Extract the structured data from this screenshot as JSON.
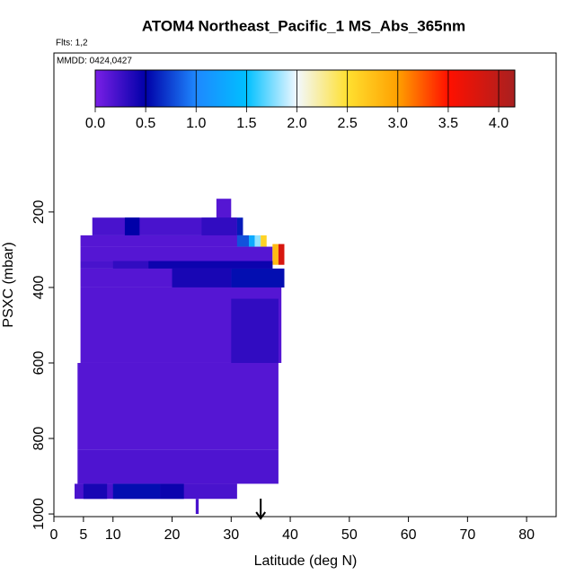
{
  "chart_data": {
    "type": "heatmap",
    "title": "ATOM4 Northeast_Pacific_1 MS_Abs_365nm",
    "subtitle": "Flts: 1,2",
    "annotation": "MMDD: 0424,0427",
    "x_label": "Latitude (deg N)",
    "y_label": "PSXC (mbar)",
    "xlim": [
      0,
      85
    ],
    "xticks": [
      0,
      5,
      10,
      20,
      30,
      40,
      50,
      60,
      70,
      80
    ],
    "ylim": [
      1007,
      -221
    ],
    "yticks": [
      200,
      400,
      600,
      800,
      1000
    ],
    "colorbar_lim": [
      0,
      4.16
    ],
    "colorbar_ticks": [
      {
        "value": 0,
        "label": "0.0"
      },
      0.5,
      {
        "value": 1,
        "label": "1.0"
      },
      1.5,
      {
        "value": 2,
        "label": "2.0"
      },
      2.5,
      {
        "value": 3,
        "label": "3.0"
      },
      3.5,
      {
        "value": 4,
        "label": "4.0"
      }
    ],
    "colorscale": [
      [
        0,
        "#7a1fe6"
      ],
      [
        0.5,
        "#0000a8"
      ],
      [
        1.0,
        "#1e88ff"
      ],
      [
        1.5,
        "#00c0ff"
      ],
      [
        2.0,
        "#f2f8ff"
      ],
      [
        2.5,
        "#ffe030"
      ],
      [
        3.0,
        "#ffa000"
      ],
      [
        3.5,
        "#ff1000"
      ],
      [
        4.16,
        "#a82020"
      ]
    ],
    "arrow_lat": 35,
    "cells": [
      {
        "lat": [
          27.5,
          30
        ],
        "p": [
          165,
          220
        ],
        "value": 0.15
      },
      {
        "lat": [
          6.5,
          31
        ],
        "p": [
          215,
          262
        ],
        "value": 0.2
      },
      {
        "lat": [
          12,
          14.5
        ],
        "p": [
          215,
          262
        ],
        "value": 0.5
      },
      {
        "lat": [
          25,
          31
        ],
        "p": [
          215,
          262
        ],
        "value": 0.3
      },
      {
        "lat": [
          31,
          32
        ],
        "p": [
          215,
          262
        ],
        "value": 0.6
      },
      {
        "lat": [
          4.5,
          33
        ],
        "p": [
          262,
          292
        ],
        "value": 0.15
      },
      {
        "lat": [
          31,
          33
        ],
        "p": [
          262,
          292
        ],
        "value": 0.8
      },
      {
        "lat": [
          33,
          34
        ],
        "p": [
          262,
          292
        ],
        "value": 1.3
      },
      {
        "lat": [
          34,
          35
        ],
        "p": [
          262,
          292
        ],
        "value": 1.8
      },
      {
        "lat": [
          35,
          36
        ],
        "p": [
          262,
          292
        ],
        "value": 2.6
      },
      {
        "lat": [
          4.5,
          37
        ],
        "p": [
          292,
          330
        ],
        "value": 0.15
      },
      {
        "lat": [
          37,
          38
        ],
        "p": [
          285,
          340
        ],
        "value": 2.8
      },
      {
        "lat": [
          38,
          39
        ],
        "p": [
          285,
          340
        ],
        "value": 3.8
      },
      {
        "lat": [
          4.5,
          37
        ],
        "p": [
          330,
          350
        ],
        "value": 0.2
      },
      {
        "lat": [
          10,
          16
        ],
        "p": [
          330,
          350
        ],
        "value": 0.3
      },
      {
        "lat": [
          16,
          37
        ],
        "p": [
          330,
          350
        ],
        "value": 0.45
      },
      {
        "lat": [
          4.5,
          39
        ],
        "p": [
          350,
          400
        ],
        "value": 0.15
      },
      {
        "lat": [
          20,
          30
        ],
        "p": [
          350,
          400
        ],
        "value": 0.4
      },
      {
        "lat": [
          30,
          39
        ],
        "p": [
          350,
          400
        ],
        "value": 0.55
      },
      {
        "lat": [
          4.5,
          38.5
        ],
        "p": [
          400,
          600
        ],
        "value": 0.15
      },
      {
        "lat": [
          30,
          38
        ],
        "p": [
          430,
          600
        ],
        "value": 0.3
      },
      {
        "lat": [
          4,
          38
        ],
        "p": [
          600,
          830
        ],
        "value": 0.15
      },
      {
        "lat": [
          4,
          38
        ],
        "p": [
          830,
          920
        ],
        "value": 0.18
      },
      {
        "lat": [
          3.5,
          31
        ],
        "p": [
          920,
          960
        ],
        "value": 0.2
      },
      {
        "lat": [
          5,
          9
        ],
        "p": [
          920,
          960
        ],
        "value": 0.4
      },
      {
        "lat": [
          10,
          18
        ],
        "p": [
          920,
          960
        ],
        "value": 0.55
      },
      {
        "lat": [
          18,
          22
        ],
        "p": [
          920,
          960
        ],
        "value": 0.45
      },
      {
        "lat": [
          24,
          24.5
        ],
        "p": [
          960,
          1000
        ],
        "value": 0.2
      }
    ]
  }
}
